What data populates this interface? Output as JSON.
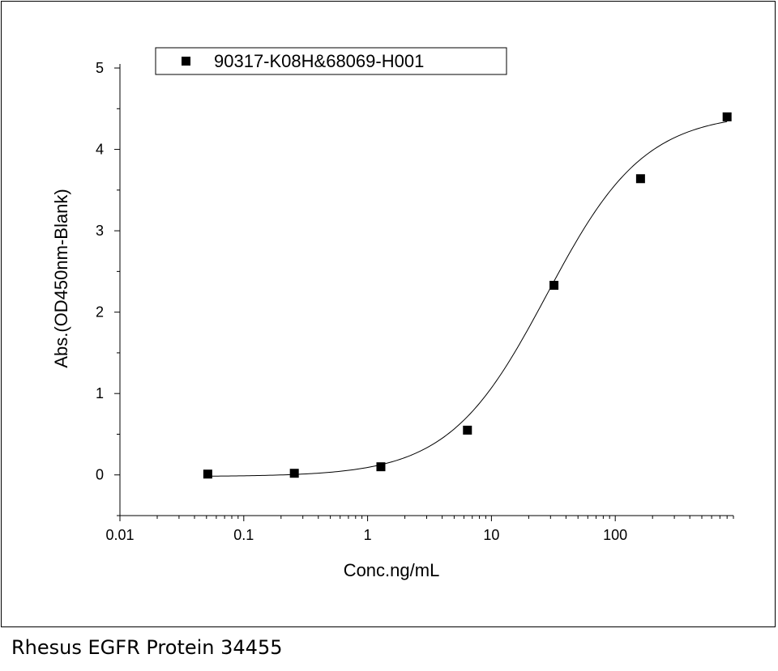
{
  "caption": "Rhesus EGFR Protein 34455",
  "chart_data": {
    "type": "scatter",
    "title": "",
    "xlabel": "Conc.ng/mL",
    "ylabel": "Abs.(OD450nm-Blank)",
    "xscale": "log",
    "xlim": [
      0.01,
      900
    ],
    "ylim": [
      -0.5,
      5.05
    ],
    "xticks": [
      0.01,
      0.1,
      1,
      10,
      100
    ],
    "xtick_labels": [
      "0.01",
      "0.1",
      "1",
      "10",
      "100"
    ],
    "yticks": [
      0,
      1,
      2,
      3,
      4,
      5
    ],
    "ytick_labels": [
      "0",
      "1",
      "2",
      "3",
      "4",
      "5"
    ],
    "legend_position": "top-left",
    "grid": false,
    "series": [
      {
        "name": "90317-K08H&68069-H001",
        "marker": "square",
        "color": "#000000",
        "x": [
          0.0512,
          0.256,
          1.28,
          6.4,
          32,
          160,
          800
        ],
        "y": [
          0.01,
          0.02,
          0.1,
          0.55,
          2.33,
          3.64,
          4.4
        ]
      }
    ],
    "fit_curve": {
      "model": "4PL",
      "bottom": -0.02,
      "top": 4.45,
      "ec50": 28,
      "hill": 1.1,
      "x_range": [
        0.0512,
        800
      ]
    }
  }
}
